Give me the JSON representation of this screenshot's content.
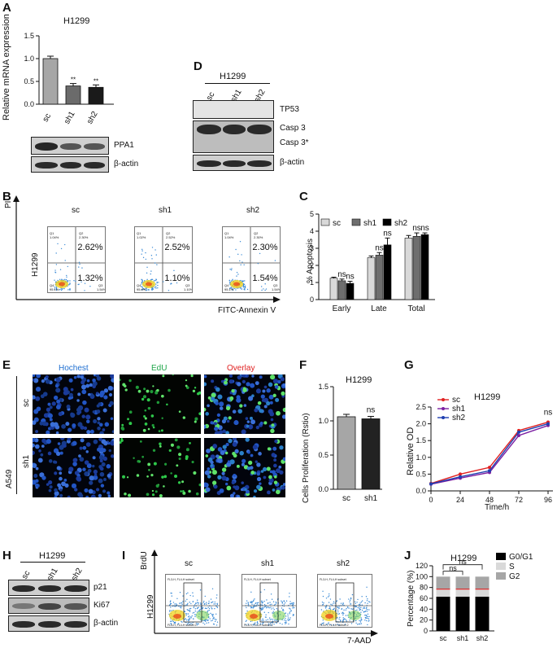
{
  "panels": {
    "A": {
      "letter": "A",
      "cell_line": "H1299",
      "ylabel": "Relative  mRNA expression",
      "yticks": [
        "0.0",
        "0.5",
        "1.0",
        "1.5"
      ],
      "categories": [
        "sc",
        "sh1",
        "sh2"
      ],
      "values": [
        1.0,
        0.4,
        0.37
      ],
      "sig": [
        "",
        "**",
        "**"
      ],
      "blot_labels": [
        "PPA1",
        "β-actin"
      ]
    },
    "D": {
      "letter": "D",
      "cell_line": "H1299",
      "lanes": [
        "sc",
        "sh1",
        "sh2"
      ],
      "blot_labels": [
        "TP53",
        "Casp 3",
        "Casp 3*",
        "β-actin"
      ]
    },
    "B": {
      "letter": "B",
      "y_axis": "PI",
      "x_axis": "FITC-Annexin V",
      "row_label": "H1299",
      "groups": [
        {
          "name": "sc",
          "q2": "2.62%",
          "q3": "1.32%",
          "tl": "Q1",
          "tl_v": "1.04%",
          "tr": "Q2",
          "tr_v": "2.30%",
          "bl": "Q4",
          "bl_v": "95.1%",
          "br": "Q3",
          "br_v": "1.54%"
        },
        {
          "name": "sh1",
          "q2": "2.52%",
          "q3": "1.10%",
          "tl": "Q1",
          "tl_v": "1.02%",
          "tr": "Q2",
          "tr_v": "2.52%",
          "bl": "Q4",
          "bl_v": "95.4%",
          "br": "Q3",
          "br_v": "1.10%"
        },
        {
          "name": "sh2",
          "q2": "2.30%",
          "q3": "1.54%",
          "tl": "Q1",
          "tl_v": "1.04%",
          "tr": "Q2",
          "tr_v": "2.30%",
          "bl": "Q4",
          "bl_v": "95.1%",
          "br": "Q3",
          "br_v": "1.54%"
        }
      ]
    },
    "C": {
      "letter": "C",
      "ylabel": "% Apoptosis",
      "yticks": [
        "0",
        "1",
        "2",
        "3",
        "4",
        "5"
      ],
      "legend": [
        "sc",
        "sh1",
        "sh2"
      ],
      "categories": [
        "Early",
        "Late",
        "Total"
      ],
      "sig_labels": [
        "ns",
        "ns",
        "ns",
        "ns",
        "ns",
        "ns"
      ]
    },
    "E": {
      "letter": "E",
      "columns": [
        "Hochest",
        "EdU",
        "Overlay"
      ],
      "column_colors": [
        "#1f6fd1",
        "#1fa64a",
        "#e02020"
      ],
      "rows": [
        "sc",
        "sh1"
      ],
      "cell_line": "A549"
    },
    "F": {
      "letter": "F",
      "cell_line": "H1299",
      "ylabel": "Cells Proliferation (Rstio)",
      "yticks": [
        "0.0",
        "0.5",
        "1.0",
        "1.5"
      ],
      "categories": [
        "sc",
        "sh1"
      ],
      "values": [
        1.06,
        1.03
      ],
      "sig": "ns"
    },
    "G": {
      "letter": "G",
      "cell_line": "H1299",
      "ylabel": "Relative OD",
      "xlabel": "Time/h",
      "yticks": [
        "0.0",
        "0.5",
        "1.0",
        "1.5",
        "2.0",
        "2.5"
      ],
      "xticks": [
        "0",
        "24",
        "48",
        "72",
        "96"
      ],
      "sig": "ns"
    },
    "H": {
      "letter": "H",
      "cell_line": "H1299",
      "lanes": [
        "sc",
        "sh1",
        "sh2"
      ],
      "blot_labels": [
        "p21",
        "Ki67",
        "β-actin"
      ]
    },
    "I": {
      "letter": "I",
      "y_axis": "BrdU",
      "x_axis": "7-AAD",
      "row_label": "H1299",
      "groups": [
        "sc",
        "sh1",
        "sh2"
      ],
      "gate_text": "FL3-H, FL4-H subset",
      "corner_text": "FL3-H, FL4-H subset 2"
    },
    "J": {
      "letter": "J",
      "cell_line": "H1299",
      "ylabel": "Percentage (%)",
      "yticks": [
        "0",
        "20",
        "40",
        "60",
        "80",
        "100",
        "120"
      ],
      "categories": [
        "sc",
        "sh1",
        "sh2"
      ],
      "legend": [
        "G0/G1",
        "S",
        "G2"
      ],
      "sig": [
        "ns",
        "ns"
      ]
    }
  },
  "chart_data": [
    {
      "type": "bar",
      "title": "H1299",
      "ylabel": "Relative  mRNA expression",
      "categories": [
        "sc",
        "sh1",
        "sh2"
      ],
      "values": [
        1.0,
        0.4,
        0.37
      ],
      "ylim": [
        0,
        1.5
      ]
    },
    {
      "type": "bar",
      "ylabel": "% Apoptosis",
      "categories": [
        "Early",
        "Late",
        "Total"
      ],
      "series": [
        {
          "name": "sc",
          "values": [
            1.25,
            2.45,
            3.6
          ]
        },
        {
          "name": "sh1",
          "values": [
            1.1,
            2.6,
            3.7
          ]
        },
        {
          "name": "sh2",
          "values": [
            0.95,
            3.2,
            3.8
          ]
        }
      ],
      "ylim": [
        0,
        5
      ]
    },
    {
      "type": "bar",
      "title": "H1299",
      "ylabel": "Cells Proliferation (Rstio)",
      "categories": [
        "sc",
        "sh1"
      ],
      "values": [
        1.06,
        1.03
      ],
      "ylim": [
        0,
        1.5
      ]
    },
    {
      "type": "line",
      "title": "H1299",
      "xlabel": "Time/h",
      "ylabel": "Relative OD",
      "x": [
        0,
        24,
        48,
        72,
        96
      ],
      "series": [
        {
          "name": "sc",
          "values": [
            0.22,
            0.5,
            0.7,
            1.8,
            2.05
          ]
        },
        {
          "name": "sh1",
          "values": [
            0.2,
            0.38,
            0.55,
            1.65,
            1.95
          ]
        },
        {
          "name": "sh2",
          "values": [
            0.21,
            0.42,
            0.6,
            1.75,
            2.0
          ]
        }
      ],
      "xlim": [
        0,
        100
      ],
      "ylim": [
        0,
        2.5
      ]
    },
    {
      "type": "bar",
      "title": "H1299",
      "ylabel": "Percentage (%)",
      "categories": [
        "sc",
        "sh1",
        "sh2"
      ],
      "series": [
        {
          "name": "G0/G1",
          "values": [
            63,
            63,
            63
          ]
        },
        {
          "name": "S",
          "values": [
            14,
            14,
            14
          ]
        },
        {
          "name": "G2",
          "values": [
            23,
            23,
            23
          ]
        }
      ],
      "ylim": [
        0,
        120
      ]
    }
  ],
  "colors": {
    "scA": "#a6a6a6",
    "shA": "#6b6b6b",
    "shA2": "#1a1a1a",
    "c_sc": "#d9d9d9",
    "c_sh1": "#6e6e6e",
    "c_sh2": "#000000",
    "g_sc": "#e02020",
    "g_sh1": "#7b1fa2",
    "g_sh2": "#1f3fb0",
    "j_g1": "#000000",
    "j_s": "#d9d9d9",
    "j_g2": "#a6a6a6",
    "j_mark": "#e02020"
  }
}
